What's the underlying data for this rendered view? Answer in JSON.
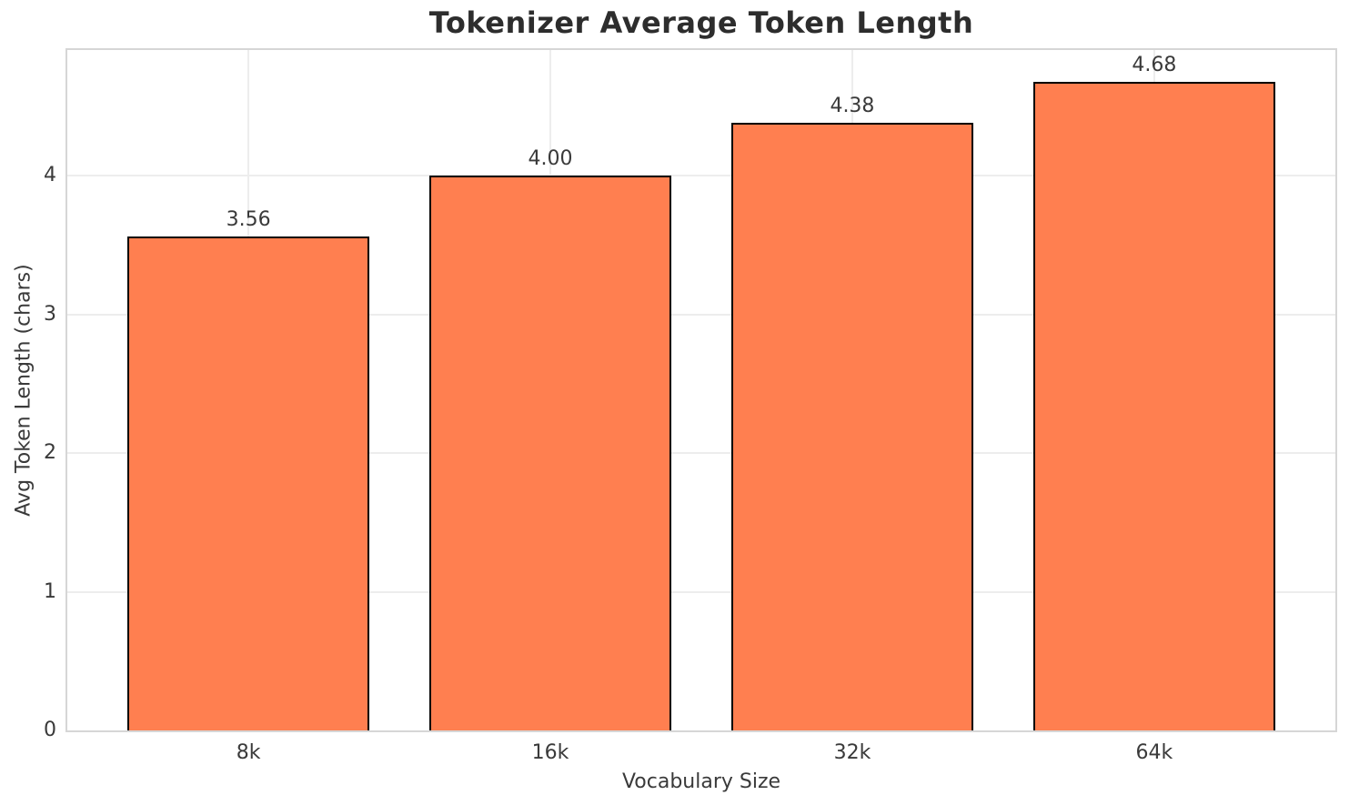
{
  "chart_data": {
    "type": "bar",
    "title": "Tokenizer Average Token Length",
    "xlabel": "Vocabulary Size",
    "ylabel": "Avg Token Length (chars)",
    "categories": [
      "8k",
      "16k",
      "32k",
      "64k"
    ],
    "values": [
      3.56,
      4.0,
      4.38,
      4.68
    ],
    "value_labels": [
      "3.56",
      "4.00",
      "4.38",
      "4.68"
    ],
    "yticks": [
      "0",
      "1",
      "2",
      "3",
      "4"
    ],
    "ytick_values": [
      0,
      1,
      2,
      3,
      4
    ],
    "ylim": [
      0,
      4.907
    ],
    "grid": true,
    "legend": false,
    "bar_color": "#FF7F50",
    "bar_edge_color": "#000000",
    "grid_color": "#ededed",
    "spine_color": "#d6d6d6",
    "text_color": "#3a3a3a",
    "title_color": "#2d2d2d",
    "background": "#ffffff"
  }
}
